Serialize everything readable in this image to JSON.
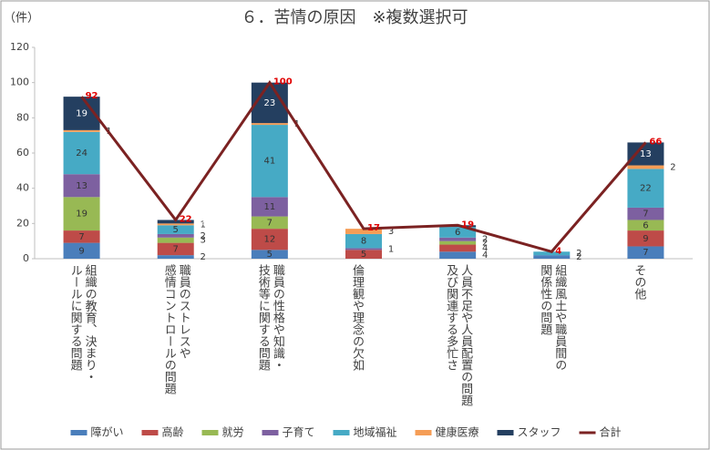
{
  "chart_data": {
    "type": "stacked-bar-line",
    "title": "６．苦情の原因　※複数選択可",
    "y_axis_label": "（件）",
    "categories": [
      "組織の教育、決まり・\nルールに関する問題",
      "職員のストレスや\n感情コントロールの問題",
      "職員の性格や知識・\n技術等に関する問題",
      "倫理観や理念の欠如",
      "人員不足や人員配置の問題\n及び関連する多忙さ",
      "組織風土や職員間の\n関係性の問題",
      "その他"
    ],
    "series": [
      {
        "name": "障がい",
        "color": "#4a7ebb",
        "values": [
          9,
          2,
          5,
          0,
          4,
          2,
          7
        ]
      },
      {
        "name": "高齢",
        "color": "#be4b48",
        "values": [
          7,
          7,
          12,
          5,
          4,
          0,
          9
        ]
      },
      {
        "name": "就労",
        "color": "#98b954",
        "values": [
          19,
          3,
          7,
          0,
          2,
          0,
          6
        ]
      },
      {
        "name": "子育て",
        "color": "#7d60a0",
        "values": [
          13,
          2,
          11,
          1,
          2,
          0,
          7
        ]
      },
      {
        "name": "地域福祉",
        "color": "#46aac5",
        "values": [
          24,
          5,
          41,
          8,
          6,
          2,
          22
        ]
      },
      {
        "name": "健康医療",
        "color": "#f59d56",
        "values": [
          1,
          1,
          1,
          3,
          0,
          0,
          2
        ]
      },
      {
        "name": "スタッフ",
        "color": "#243f60",
        "values": [
          19,
          2,
          23,
          0,
          1,
          0,
          13
        ]
      },
      {
        "name": "合計",
        "color": "#7b2222",
        "type": "line",
        "values": [
          92,
          22,
          100,
          17,
          19,
          4,
          66
        ]
      }
    ],
    "ylim": [
      0,
      120
    ],
    "yticks": [
      0,
      20,
      40,
      60,
      80,
      100,
      120
    ],
    "grid": false
  }
}
